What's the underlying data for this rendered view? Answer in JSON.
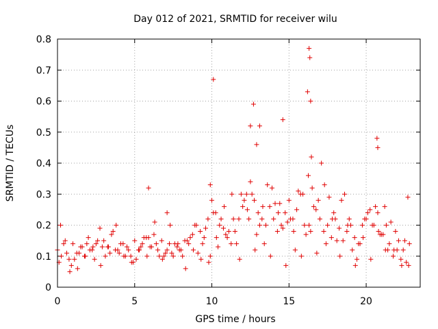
{
  "chart_data": {
    "type": "scatter",
    "title": "Day 012 of 2021, SRMTID for receiver wilu",
    "xlabel": "GPS time / hours",
    "ylabel": "SRMTID / TECUs",
    "xlim": [
      0,
      23.5
    ],
    "ylim": [
      0,
      0.8
    ],
    "x_ticks": [
      0,
      5,
      10,
      15,
      20
    ],
    "x_tick_labels": [
      "0",
      "5",
      "10",
      "15",
      "20"
    ],
    "y_ticks": [
      0,
      0.1,
      0.2,
      0.3,
      0.4,
      0.5,
      0.6,
      0.7,
      0.8
    ],
    "y_tick_labels": [
      "0",
      "0.1",
      "0.2",
      "0.3",
      "0.4",
      "0.5",
      "0.6",
      "0.7",
      "0.8"
    ],
    "grid": true,
    "marker": "+",
    "color": "#e00000",
    "series": [
      {
        "name": "SRMTID",
        "x": [
          0.0,
          0.25,
          0.5,
          0.75,
          1.0,
          1.25,
          1.5,
          1.75,
          2.0,
          2.25,
          2.5,
          2.75,
          3.0,
          3.25,
          3.5,
          3.75,
          4.0,
          4.25,
          4.5,
          4.75,
          5.0,
          5.25,
          5.5,
          5.75,
          6.0,
          6.25,
          6.5,
          6.75,
          7.0,
          7.25,
          7.5,
          7.75,
          8.0,
          8.25,
          8.5,
          8.75,
          9.0,
          9.25,
          9.5,
          9.75,
          10.0,
          10.25,
          10.5,
          10.75,
          11.0,
          11.25,
          11.5,
          11.75,
          12.0,
          12.25,
          12.5,
          12.75,
          13.0,
          13.25,
          13.5,
          13.75,
          14.0,
          14.25,
          14.5,
          14.75,
          15.0,
          15.25,
          15.5,
          15.75,
          16.0,
          16.25,
          16.5,
          16.75,
          17.0,
          17.25,
          17.5,
          17.75,
          18.0,
          18.25,
          18.5,
          18.75,
          19.0,
          19.25,
          19.5,
          19.75,
          20.0,
          20.25,
          20.5,
          20.75,
          21.0,
          21.25,
          21.5,
          21.75,
          22.0,
          22.25,
          22.5,
          22.75,
          0.1,
          0.6,
          1.1,
          1.6,
          2.1,
          2.6,
          3.1,
          3.6,
          4.1,
          4.6,
          5.1,
          5.6,
          6.1,
          6.6,
          7.1,
          7.6,
          8.1,
          8.6,
          9.1,
          9.6,
          10.1,
          10.6,
          11.1,
          11.6,
          12.1,
          12.6,
          13.1,
          13.6,
          14.1,
          14.6,
          15.1,
          15.6,
          16.1,
          16.6,
          17.1,
          17.6,
          18.1,
          18.6,
          19.1,
          19.6,
          20.1,
          20.6,
          21.1,
          21.6,
          22.1,
          22.6,
          0.4,
          0.9,
          1.4,
          1.9,
          2.4,
          2.9,
          3.4,
          3.9,
          4.4,
          4.9,
          5.4,
          5.9,
          6.4,
          6.9,
          7.4,
          7.9,
          8.4,
          8.9,
          9.4,
          9.9,
          10.4,
          10.9,
          11.4,
          11.9,
          12.4,
          12.9,
          13.4,
          13.9,
          14.4,
          14.9,
          15.4,
          15.9,
          16.4,
          16.9,
          17.4,
          17.9,
          18.4,
          18.9,
          19.4,
          19.9,
          20.4,
          20.9,
          21.4,
          21.9,
          22.4,
          22.8,
          0.2,
          0.8,
          1.3,
          1.8,
          2.3,
          2.8,
          3.3,
          3.8,
          4.3,
          4.8,
          5.3,
          5.8,
          6.3,
          6.8,
          7.3,
          7.8,
          8.3,
          8.8,
          9.3,
          9.8,
          10.3,
          10.8,
          11.3,
          11.8,
          12.3,
          12.8,
          13.3,
          13.8,
          14.3,
          14.8,
          15.3,
          15.8,
          16.3,
          16.8,
          17.3,
          17.8,
          18.3,
          18.8,
          19.3,
          19.8,
          20.3,
          20.8,
          21.3,
          21.8,
          22.3,
          22.7,
          5.9,
          7.1,
          9.9,
          10.1,
          12.5,
          12.7,
          12.9,
          13.1,
          14.6,
          16.2,
          16.3,
          16.35,
          16.4,
          16.45,
          20.7,
          20.75,
          21.2
        ],
        "y": [
          0.12,
          0.1,
          0.15,
          0.09,
          0.14,
          0.11,
          0.13,
          0.1,
          0.16,
          0.12,
          0.14,
          0.19,
          0.15,
          0.13,
          0.17,
          0.12,
          0.11,
          0.14,
          0.13,
          0.1,
          0.15,
          0.12,
          0.14,
          0.16,
          0.13,
          0.17,
          0.12,
          0.15,
          0.11,
          0.14,
          0.1,
          0.13,
          0.12,
          0.15,
          0.14,
          0.17,
          0.2,
          0.18,
          0.16,
          0.22,
          0.28,
          0.24,
          0.2,
          0.19,
          0.16,
          0.14,
          0.18,
          0.22,
          0.26,
          0.3,
          0.34,
          0.28,
          0.24,
          0.22,
          0.2,
          0.26,
          0.22,
          0.18,
          0.2,
          0.24,
          0.28,
          0.22,
          0.25,
          0.3,
          0.2,
          0.36,
          0.32,
          0.25,
          0.22,
          0.18,
          0.2,
          0.16,
          0.22,
          0.19,
          0.15,
          0.18,
          0.2,
          0.16,
          0.14,
          0.2,
          0.22,
          0.25,
          0.2,
          0.24,
          0.17,
          0.12,
          0.14,
          0.1,
          0.12,
          0.09,
          0.15,
          0.07,
          0.08,
          0.11,
          0.09,
          0.13,
          0.12,
          0.15,
          0.1,
          0.18,
          0.14,
          0.12,
          0.09,
          0.16,
          0.13,
          0.1,
          0.12,
          0.14,
          0.1,
          0.16,
          0.11,
          0.19,
          0.24,
          0.22,
          0.18,
          0.14,
          0.28,
          0.3,
          0.2,
          0.33,
          0.27,
          0.19,
          0.22,
          0.31,
          0.17,
          0.26,
          0.4,
          0.29,
          0.15,
          0.3,
          0.12,
          0.14,
          0.24,
          0.26,
          0.17,
          0.21,
          0.15,
          0.08,
          0.14,
          0.07,
          0.11,
          0.14,
          0.09,
          0.13,
          0.11,
          0.12,
          0.1,
          0.08,
          0.13,
          0.16,
          0.14,
          0.1,
          0.11,
          0.12,
          0.15,
          0.2,
          0.14,
          0.1,
          0.13,
          0.17,
          0.22,
          0.3,
          0.22,
          0.17,
          0.14,
          0.32,
          0.27,
          0.21,
          0.12,
          0.3,
          0.18,
          0.28,
          0.14,
          0.24,
          0.28,
          0.22,
          0.09,
          0.22,
          0.2,
          0.17,
          0.12,
          0.18,
          0.12,
          0.14,
          0.2,
          0.05,
          0.06,
          0.1,
          0.13,
          0.07,
          0.13,
          0.2,
          0.1,
          0.08,
          0.12,
          0.1,
          0.21,
          0.09,
          0.2,
          0.14,
          0.06,
          0.12,
          0.09,
          0.08,
          0.16,
          0.26,
          0.3,
          0.09,
          0.25,
          0.12,
          0.26,
          0.1,
          0.24,
          0.07,
          0.18,
          0.1,
          0.2,
          0.11,
          0.33,
          0.22,
          0.1,
          0.2,
          0.07,
          0.16,
          0.09,
          0.18,
          0.2,
          0.12,
          0.07,
          0.29,
          0.32,
          0.24,
          0.33,
          0.67,
          0.52,
          0.59,
          0.46,
          0.52,
          0.54,
          0.63,
          0.77,
          0.74,
          0.6,
          0.42,
          0.48,
          0.45,
          0.26
        ]
      }
    ]
  }
}
